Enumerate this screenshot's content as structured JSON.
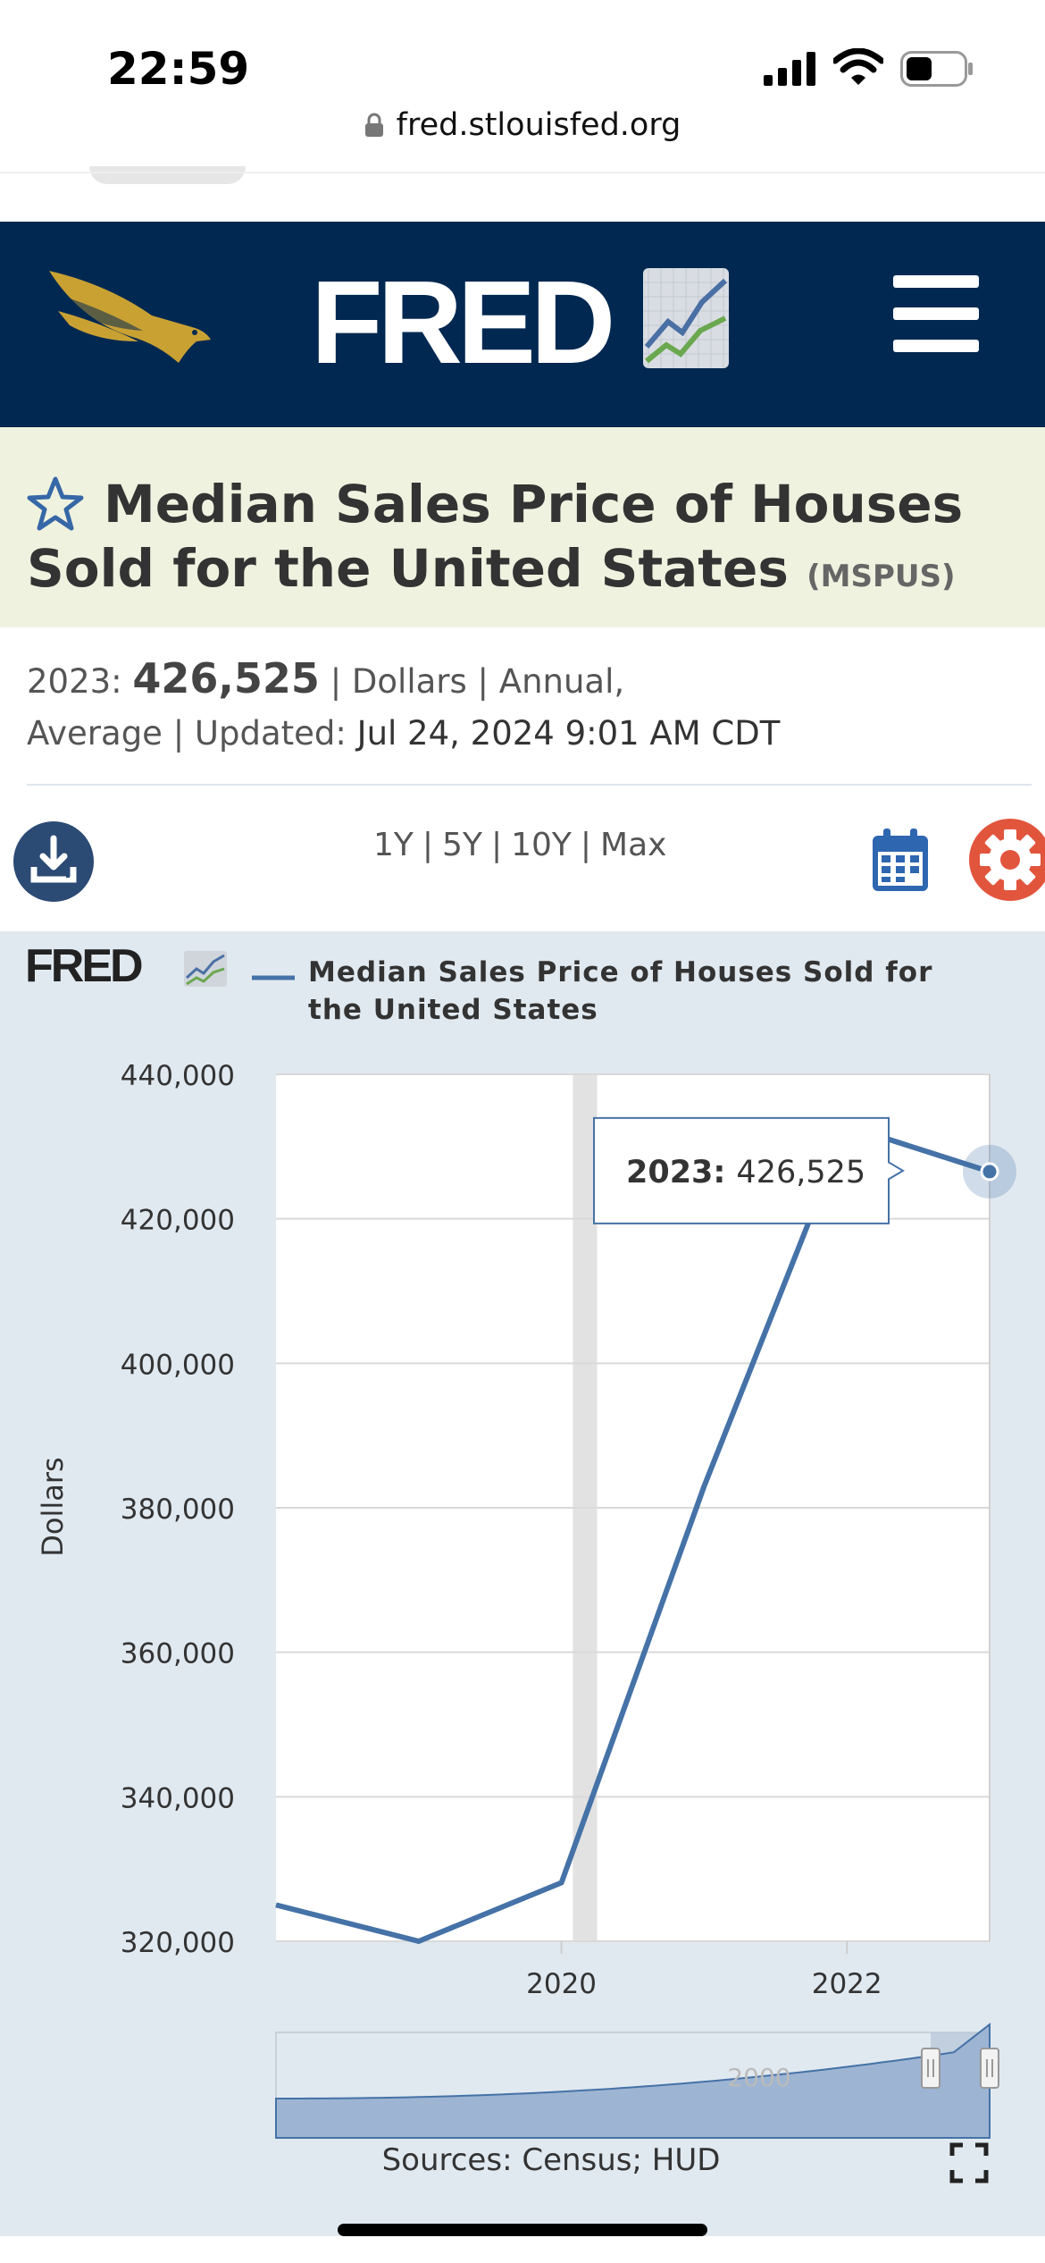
{
  "status_bar": {
    "time": "22:59"
  },
  "browser": {
    "url": "fred.stlouisfed.org"
  },
  "header": {
    "logo_text": "FRED"
  },
  "series": {
    "title": "Median Sales Price of Houses Sold for the United States",
    "id": "(MSPUS)"
  },
  "meta": {
    "year_label": "2023:",
    "value": "426,525",
    "sep1": "| Dollars | Annual,",
    "line2_a": "Average | Updated:",
    "updated": "Jul 24, 2024 9:01 AM CDT"
  },
  "controls": {
    "ranges": [
      "1Y",
      "5Y",
      "10Y",
      "Max"
    ]
  },
  "chart_data": {
    "type": "line",
    "legend_logo": "FRED",
    "series": [
      {
        "name": "Median Sales Price of Houses Sold for the United States",
        "x": [
          2018,
          2019,
          2020,
          2021,
          2022,
          2023
        ],
        "values": [
          325025,
          319650,
          328100,
          383000,
          432850,
          426525
        ],
        "color": "#4572a7"
      }
    ],
    "legend_lines": [
      "Median Sales Price of Houses Sold for",
      "the United States"
    ],
    "ylabel": "Dollars",
    "yticks": [
      320000,
      340000,
      360000,
      380000,
      400000,
      420000,
      440000
    ],
    "ytick_labels": [
      "320,000",
      "340,000",
      "360,000",
      "380,000",
      "400,000",
      "420,000",
      "440,000"
    ],
    "xticks": [
      2020,
      2022
    ],
    "xtick_labels": [
      "2020",
      "2022"
    ],
    "xlim": [
      2018,
      2023
    ],
    "ylim": [
      320000,
      440000
    ],
    "recession_band": [
      2020.08,
      2020.25
    ],
    "tooltip": {
      "label": "2023:",
      "value": "426,525"
    },
    "navigator_label": "2000",
    "source": "Sources: Census; HUD"
  }
}
